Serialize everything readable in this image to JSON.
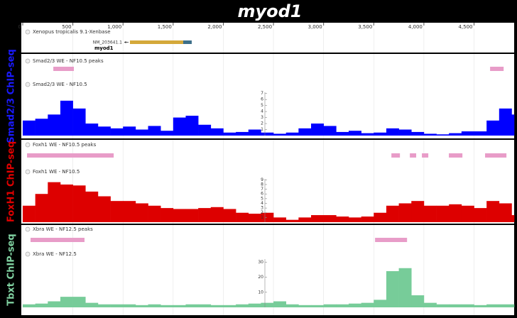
{
  "title": "myod1",
  "ruler": {
    "xlim": [
      0,
      4900
    ],
    "xticks": [
      0,
      500,
      {
        "value": 1000,
        "label": "1,000"
      },
      {
        "value": 1500,
        "label": "1,500"
      },
      {
        "value": 2000,
        "label": "2,000"
      },
      {
        "value": 2500,
        "label": "2,500"
      },
      {
        "value": 3000,
        "label": "3,000"
      },
      {
        "value": 3500,
        "label": "3,500"
      },
      {
        "value": 4000,
        "label": "4,000"
      },
      {
        "value": 4500,
        "label": "4,500"
      }
    ],
    "grid": true
  },
  "gene_track": {
    "name": "Xenopus tropicalis 9.1-Xenbase",
    "transcript": "NM_203641.1",
    "gene": "myod1",
    "exons": [
      {
        "start": 1069,
        "end": 1600,
        "color": "#d4a83a"
      },
      {
        "start": 1600,
        "end": 1685,
        "color": "#3d6f8a"
      }
    ]
  },
  "signal_x": [
    0,
    125,
    250,
    375,
    500,
    625,
    750,
    875,
    1000,
    1125,
    1250,
    1375,
    1500,
    1625,
    1750,
    1875,
    2000,
    2125,
    2250,
    2375,
    2500,
    2625,
    2750,
    2875,
    3000,
    3125,
    3250,
    3375,
    3500,
    3625,
    3750,
    3875,
    4000,
    4125,
    4250,
    4375,
    4500,
    4625,
    4750,
    4875
  ],
  "groups": [
    {
      "label": "Smad2/3 ChIP-seq",
      "label_color": "#1a1aff",
      "peaks": {
        "name": "Smad2/3 WE - NF10.5 peaks",
        "color": "#e89cc8",
        "intervals": [
          [
            305,
            510
          ],
          [
            4660,
            4795
          ]
        ]
      },
      "signal": {
        "type": "bar",
        "name": "Smad2/3 WE - NF10.5",
        "color": "#0000ff",
        "ylim": [
          0,
          7.2
        ],
        "yticks": [
          1,
          2,
          3,
          4,
          5,
          6,
          7
        ],
        "values": [
          2.5,
          2.8,
          3.5,
          5.8,
          4.5,
          2.0,
          1.5,
          1.2,
          1.5,
          1.0,
          1.6,
          0.8,
          3.0,
          3.3,
          1.8,
          1.2,
          0.5,
          0.6,
          1.0,
          0.5,
          0.3,
          0.5,
          1.2,
          2.0,
          1.6,
          0.6,
          0.8,
          0.4,
          0.5,
          1.2,
          1.0,
          0.6,
          0.3,
          0.2,
          0.4,
          0.7,
          0.7,
          2.5,
          4.5,
          3.5
        ]
      }
    },
    {
      "label": "FoxH1 ChIP-seq",
      "label_color": "#e00000",
      "peaks": {
        "name": "Foxh1 WE - NF10.5 peaks",
        "color": "#e89cc8",
        "intervals": [
          [
            43,
            907
          ],
          [
            3676,
            3761
          ],
          [
            3860,
            3923
          ],
          [
            3980,
            4044
          ],
          [
            4249,
            4384
          ],
          [
            4610,
            4823
          ]
        ]
      },
      "signal": {
        "type": "bar",
        "name": "Foxh1 WE - NF10.5",
        "color": "#dd0000",
        "ylim": [
          0,
          9.2
        ],
        "yticks": [
          1,
          2,
          3,
          4,
          5,
          6,
          7,
          8,
          9
        ],
        "values": [
          3.5,
          6,
          8.5,
          8,
          7.8,
          6.5,
          5.5,
          4.5,
          4.5,
          4,
          3.5,
          3,
          2.8,
          2.8,
          3,
          3.2,
          2.8,
          2,
          1.8,
          2,
          1,
          0.5,
          1,
          1.5,
          1.5,
          1.2,
          1,
          1.2,
          2,
          3.5,
          4,
          4.5,
          3.5,
          3.5,
          3.8,
          3.5,
          3,
          4.5,
          4,
          1.5
        ]
      }
    },
    {
      "label": "Tbxt ChIP-seq",
      "label_color": "#7fd0a0",
      "peaks": {
        "name": "Xbra WE - NF12.5 peaks",
        "color": "#e89cc8",
        "intervals": [
          [
            78,
            616
          ],
          [
            3513,
            3832
          ]
        ]
      },
      "signal": {
        "type": "bar",
        "name": "Xbra WE - NF12.5",
        "color": "#77cc99",
        "ylim": [
          0,
          32
        ],
        "yticks": [
          10,
          20,
          30
        ],
        "values": [
          2,
          2.5,
          4,
          7,
          7,
          3,
          2,
          2,
          2,
          1.5,
          2,
          1.5,
          1.5,
          2,
          2,
          1.5,
          1.5,
          2,
          2.5,
          3,
          4,
          2,
          1.5,
          1.5,
          2,
          2,
          2.5,
          3,
          5,
          24,
          26,
          8,
          3,
          2,
          2,
          2,
          1.5,
          2,
          2,
          2
        ]
      }
    }
  ]
}
